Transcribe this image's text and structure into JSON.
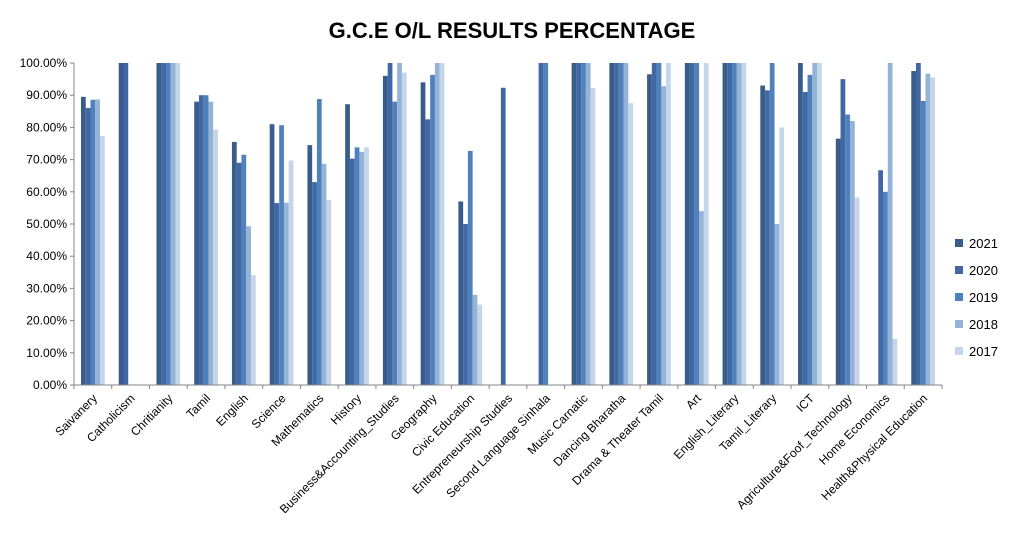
{
  "chart_data": {
    "type": "bar",
    "title": "G.C.E O/L RESULTS PERCENTAGE",
    "xlabel": "",
    "ylabel": "",
    "ylim": [
      0,
      100
    ],
    "yticks": [
      "0.00%",
      "10.00%",
      "20.00%",
      "30.00%",
      "40.00%",
      "50.00%",
      "60.00%",
      "70.00%",
      "80.00%",
      "90.00%",
      "100.00%"
    ],
    "grid": false,
    "legend_position": "right",
    "categories": [
      "Saivanery",
      "Catholicism",
      "Chritianity",
      "Tamil",
      "English",
      "Science",
      "Mathematics",
      "History",
      "Business&Accounting_Studies",
      "Geography",
      "Civic Education",
      "Entrepreneurship Studies",
      "Second Language Sinhala",
      "Music Carnatic",
      "Dancing Bharatha",
      "Drama & Theater Tamil",
      "Art",
      "English_Literary",
      "Tamil_Literary",
      "ICT",
      "Agriculture&Foof_Technology",
      "Home Economics",
      "Health&Physical Education"
    ],
    "series": [
      {
        "name": "2021",
        "color": "#385d8a",
        "values": [
          89.5,
          100,
          100,
          88,
          75.5,
          81,
          74.5,
          87.2,
          96,
          94,
          57,
          null,
          null,
          100,
          100,
          96.5,
          100,
          100,
          93,
          100,
          76.5,
          null,
          97.5
        ]
      },
      {
        "name": "2020",
        "color": "#4268a3",
        "values": [
          86,
          100,
          100,
          90,
          69,
          56.5,
          63,
          70.3,
          100,
          82.5,
          50,
          92.3,
          100,
          100,
          100,
          100,
          100,
          100,
          91.5,
          91,
          95,
          66.7,
          100
        ]
      },
      {
        "name": "2019",
        "color": "#4f81bd",
        "values": [
          88.6,
          null,
          100,
          90,
          71.5,
          80.7,
          88.8,
          73.8,
          88,
          96.3,
          72.7,
          null,
          100,
          100,
          100,
          100,
          100,
          100,
          100,
          96.3,
          84,
          60,
          88.2
        ]
      },
      {
        "name": "2018",
        "color": "#95b3d7",
        "values": [
          88.7,
          null,
          100,
          88,
          49.3,
          56.6,
          68.7,
          72.4,
          100,
          100,
          28,
          null,
          null,
          100,
          100,
          92.8,
          54,
          100,
          50,
          100,
          82,
          100,
          96.7
        ]
      },
      {
        "name": "2017",
        "color": "#c5d5ea",
        "values": [
          77.3,
          null,
          100,
          79.3,
          34.1,
          69.7,
          57.5,
          73.8,
          97,
          100,
          25,
          null,
          null,
          92.2,
          87.5,
          100,
          100,
          100,
          80,
          100,
          58.2,
          14.3,
          95.5
        ]
      }
    ]
  }
}
